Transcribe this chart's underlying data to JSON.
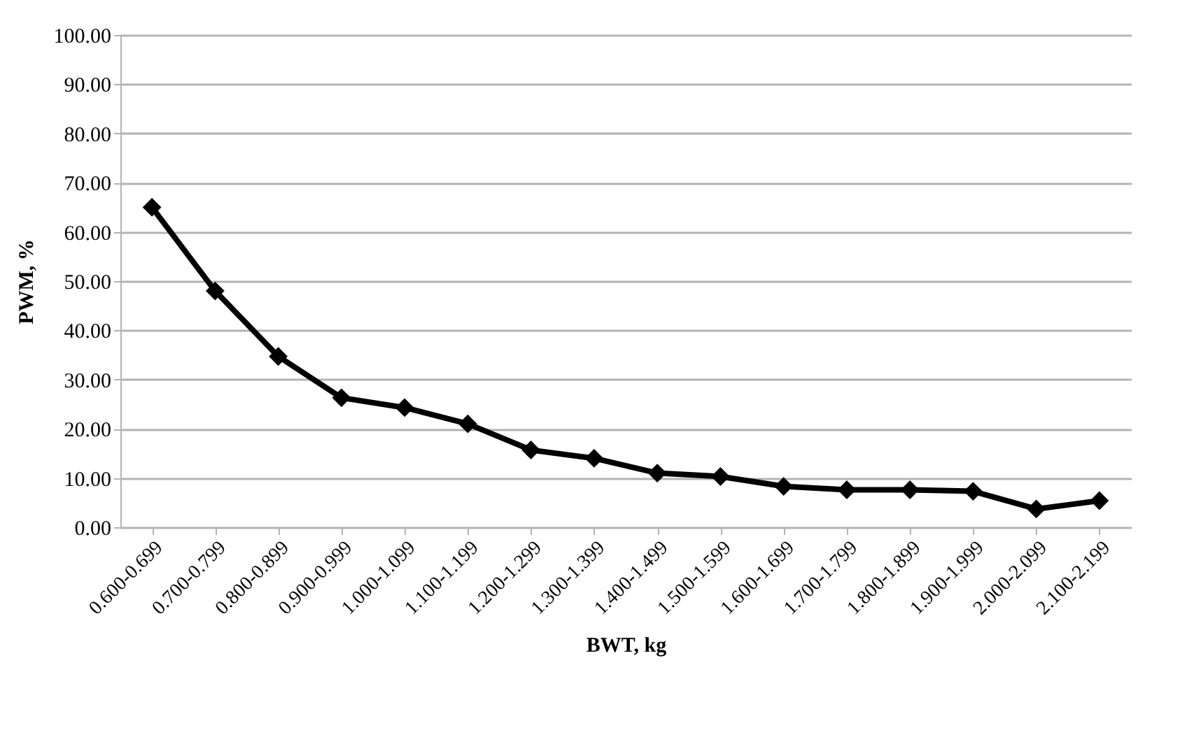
{
  "chart_data": {
    "type": "line",
    "xlabel": "BWT, kg",
    "ylabel": "PWM, %",
    "categories": [
      "0.600-0.699",
      "0.700-0.799",
      "0.800-0.899",
      "0.900-0.999",
      "1.000-1.099",
      "1.100-1.199",
      "1.200-1.299",
      "1.300-1.399",
      "1.400-1.499",
      "1.500-1.599",
      "1.600-1.699",
      "1.700-1.799",
      "1.800-1.899",
      "1.900-1.999",
      "2.000-2.099",
      "2.100-2.199"
    ],
    "series": [
      {
        "color": "#000000",
        "values": [
          65.0,
          48.0,
          34.7,
          26.3,
          24.3,
          21.0,
          15.7,
          14.0,
          11.0,
          10.3,
          8.3,
          7.6,
          7.6,
          7.3,
          3.7,
          5.4
        ]
      }
    ],
    "ylim": [
      0,
      100
    ],
    "yticks": [
      {
        "value": 0,
        "label": "0.00"
      },
      {
        "value": 10,
        "label": "10.00"
      },
      {
        "value": 20,
        "label": "20.00"
      },
      {
        "value": 30,
        "label": "30.00"
      },
      {
        "value": 40,
        "label": "40.00"
      },
      {
        "value": 50,
        "label": "50.00"
      },
      {
        "value": 60,
        "label": "60.00"
      },
      {
        "value": 70,
        "label": "70.00"
      },
      {
        "value": 80,
        "label": "80.00"
      },
      {
        "value": 90,
        "label": "90.00"
      },
      {
        "value": 100,
        "label": "100.00"
      }
    ],
    "grid": "y",
    "marker": "diamond",
    "line_style": "solid"
  }
}
